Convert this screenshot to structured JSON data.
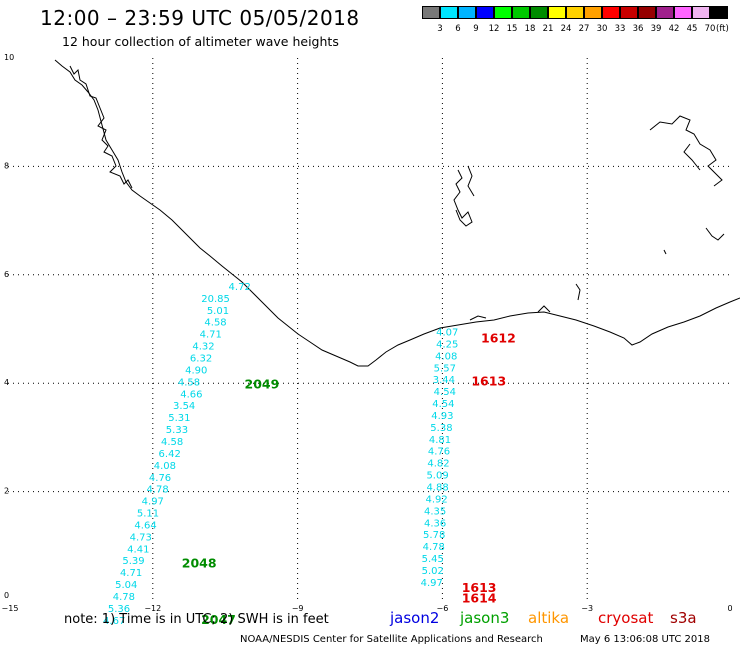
{
  "header": {
    "title": "12:00 – 23:59 UTC 05/05/2018",
    "subtitle": "12 hour collection of altimeter wave heights"
  },
  "colorbar": {
    "unit": "(ft)",
    "bins": [
      {
        "label": "3",
        "color": "#787878"
      },
      {
        "label": "6",
        "color": "#00e6ff"
      },
      {
        "label": "9",
        "color": "#00b4ff"
      },
      {
        "label": "12",
        "color": "#0000ff"
      },
      {
        "label": "15",
        "color": "#00ff00"
      },
      {
        "label": "18",
        "color": "#00c800"
      },
      {
        "label": "21",
        "color": "#008c00"
      },
      {
        "label": "24",
        "color": "#ffff00"
      },
      {
        "label": "27",
        "color": "#ffd200"
      },
      {
        "label": "30",
        "color": "#ffa000"
      },
      {
        "label": "33",
        "color": "#ff0000"
      },
      {
        "label": "36",
        "color": "#c80000"
      },
      {
        "label": "39",
        "color": "#960000"
      },
      {
        "label": "42",
        "color": "#a0208c"
      },
      {
        "label": "45",
        "color": "#ff64ff"
      },
      {
        "label": "70",
        "color": "#f0b4f0"
      },
      {
        "label": "",
        "color": "#000000"
      }
    ]
  },
  "axes": {
    "x_ticks": [
      "−15",
      "−12",
      "−9",
      "−6",
      "−3",
      "0"
    ],
    "y_ticks": [
      "0",
      "2",
      "4",
      "6",
      "8",
      "10"
    ]
  },
  "tracks": [
    {
      "name": "track-west",
      "observations": [
        {
          "lon": -10.2,
          "lat": 5.72,
          "value": "4.72"
        },
        {
          "lon": -10.7,
          "lat": 5.5,
          "value": "20.85"
        },
        {
          "lon": -10.65,
          "lat": 5.28,
          "value": "5.01"
        },
        {
          "lon": -10.7,
          "lat": 5.06,
          "value": "4.58"
        },
        {
          "lon": -10.8,
          "lat": 4.84,
          "value": "4.71"
        },
        {
          "lon": -10.95,
          "lat": 4.62,
          "value": "4.32"
        },
        {
          "lon": -11.0,
          "lat": 4.4,
          "value": "6.32"
        },
        {
          "lon": -11.1,
          "lat": 4.18,
          "value": "4.90"
        },
        {
          "lon": -11.25,
          "lat": 3.96,
          "value": "4.58"
        },
        {
          "lon": -11.2,
          "lat": 3.74,
          "value": "4.66"
        },
        {
          "lon": -11.35,
          "lat": 3.52,
          "value": "3.54"
        },
        {
          "lon": -11.45,
          "lat": 3.3,
          "value": "5.31"
        },
        {
          "lon": -11.5,
          "lat": 3.08,
          "value": "5.33"
        },
        {
          "lon": -11.6,
          "lat": 2.86,
          "value": "4.58"
        },
        {
          "lon": -11.65,
          "lat": 2.64,
          "value": "6.42"
        },
        {
          "lon": -11.75,
          "lat": 2.42,
          "value": "4.08"
        },
        {
          "lon": -11.85,
          "lat": 2.2,
          "value": "4.76"
        },
        {
          "lon": -11.9,
          "lat": 1.98,
          "value": "4.78"
        },
        {
          "lon": -12.0,
          "lat": 1.76,
          "value": "4.97"
        },
        {
          "lon": -12.1,
          "lat": 1.54,
          "value": "5.11"
        },
        {
          "lon": -12.15,
          "lat": 1.32,
          "value": "4.64"
        },
        {
          "lon": -12.25,
          "lat": 1.1,
          "value": "4.73"
        },
        {
          "lon": -12.3,
          "lat": 0.88,
          "value": "4.41"
        },
        {
          "lon": -12.4,
          "lat": 0.66,
          "value": "5.39"
        },
        {
          "lon": -12.45,
          "lat": 0.44,
          "value": "4.71"
        },
        {
          "lon": -12.55,
          "lat": 0.22,
          "value": "5.04"
        },
        {
          "lon": -12.6,
          "lat": 0.0,
          "value": "4.78"
        },
        {
          "lon": -12.7,
          "lat": -0.22,
          "value": "5.36"
        },
        {
          "lon": -12.8,
          "lat": -0.44,
          "value": "4.67"
        }
      ]
    },
    {
      "name": "track-east",
      "observations": [
        {
          "lon": -5.9,
          "lat": 4.88,
          "value": "4.07"
        },
        {
          "lon": -5.9,
          "lat": 4.66,
          "value": "4.25"
        },
        {
          "lon": -5.92,
          "lat": 4.44,
          "value": "4.08"
        },
        {
          "lon": -5.95,
          "lat": 4.22,
          "value": "5.57"
        },
        {
          "lon": -5.97,
          "lat": 4.0,
          "value": "3.44"
        },
        {
          "lon": -5.95,
          "lat": 3.78,
          "value": "4.54"
        },
        {
          "lon": -5.98,
          "lat": 3.56,
          "value": "4.54"
        },
        {
          "lon": -6.0,
          "lat": 3.34,
          "value": "4.93"
        },
        {
          "lon": -6.02,
          "lat": 3.12,
          "value": "5.38"
        },
        {
          "lon": -6.05,
          "lat": 2.9,
          "value": "4.81"
        },
        {
          "lon": -6.07,
          "lat": 2.68,
          "value": "4.76"
        },
        {
          "lon": -6.08,
          "lat": 2.46,
          "value": "4.82"
        },
        {
          "lon": -6.1,
          "lat": 2.24,
          "value": "5.09"
        },
        {
          "lon": -6.1,
          "lat": 2.02,
          "value": "4.88"
        },
        {
          "lon": -6.12,
          "lat": 1.8,
          "value": "4.92"
        },
        {
          "lon": -6.15,
          "lat": 1.58,
          "value": "4.35"
        },
        {
          "lon": -6.15,
          "lat": 1.36,
          "value": "4.36"
        },
        {
          "lon": -6.17,
          "lat": 1.14,
          "value": "5.78"
        },
        {
          "lon": -6.18,
          "lat": 0.92,
          "value": "4.78"
        },
        {
          "lon": -6.2,
          "lat": 0.7,
          "value": "5.45"
        },
        {
          "lon": -6.2,
          "lat": 0.48,
          "value": "5.02"
        },
        {
          "lon": -6.22,
          "lat": 0.26,
          "value": "4.97"
        }
      ]
    }
  ],
  "pass_labels": [
    {
      "text": "1612",
      "lon": -5.2,
      "lat": 4.75,
      "color": "#e00000"
    },
    {
      "text": "1613",
      "lon": -5.4,
      "lat": 3.96,
      "color": "#e00000"
    },
    {
      "text": "2049",
      "lon": -10.1,
      "lat": 3.9,
      "color": "#008c00"
    },
    {
      "text": "2048",
      "lon": -11.4,
      "lat": 0.6,
      "color": "#008c00"
    },
    {
      "text": "2047",
      "lon": -11.0,
      "lat": -0.44,
      "color": "#008c00"
    },
    {
      "text": "1613",
      "lon": -5.6,
      "lat": 0.15,
      "color": "#e00000"
    },
    {
      "text": "1614",
      "lon": -5.6,
      "lat": -0.05,
      "color": "#e00000"
    }
  ],
  "footer": {
    "note": "note:  1) Time is in UTC;  2) SWH is in feet",
    "satellites": [
      {
        "name": "jason2",
        "color": "#0000e0"
      },
      {
        "name": "jason3",
        "color": "#00a000"
      },
      {
        "name": "altika",
        "color": "#ff9600"
      },
      {
        "name": "cryosat",
        "color": "#e00000"
      },
      {
        "name": "s3a",
        "color": "#a00000"
      }
    ],
    "credit": "NOAA/NESDIS Center for Satellite Applications and Research",
    "generated": "May  6 13:06:08 UTC 2018"
  }
}
